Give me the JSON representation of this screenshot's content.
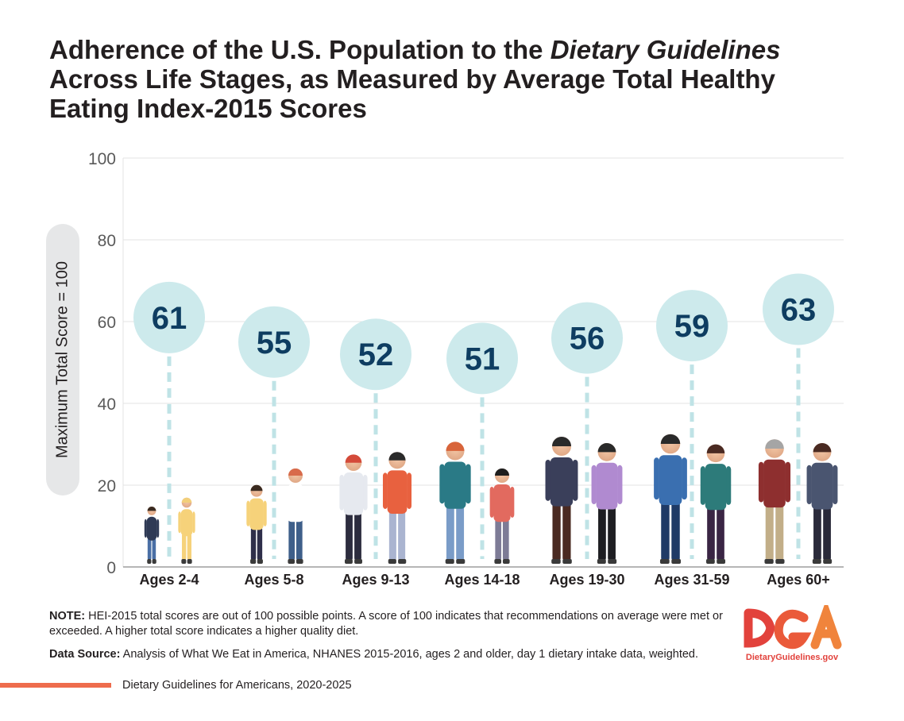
{
  "title": {
    "part1": "Adherence of the U.S. Population to the ",
    "italic": "Dietary Guidelines",
    "part2": "Across Life Stages, as Measured by Average Total Healthy Eating Index-2015 Scores"
  },
  "chart_data": {
    "type": "bar",
    "categories": [
      "Ages 2-4",
      "Ages 5-8",
      "Ages 9-13",
      "Ages 14-18",
      "Ages 19-30",
      "Ages 31-59",
      "Ages 60+"
    ],
    "values": [
      61,
      55,
      52,
      51,
      56,
      59,
      63
    ],
    "ylabel": "Maximum Total Score = 100",
    "ylim": [
      0,
      100
    ],
    "yticks": [
      0,
      20,
      40,
      60,
      80,
      100
    ],
    "grid": true,
    "colors": {
      "bubble": "#cdeaec",
      "label": "#0e3d61",
      "guide": "#bfe3e6",
      "grid": "#e3e3e3",
      "axis": "#8a8a8a"
    }
  },
  "note": {
    "label": "NOTE:",
    "text": " HEI-2015 total scores are out of 100 possible points. A score of 100 indicates that recommendations on average were met or exceeded.  A higher total score indicates a higher quality diet."
  },
  "source": {
    "label": "Data Source:",
    "text": " Analysis of What We Eat in America, NHANES 2015-2016, ages 2 and older, day 1 dietary intake data, weighted."
  },
  "logo": {
    "letters": "DGA",
    "url": "DietaryGuidelines.gov",
    "colors": [
      "#e2423c",
      "#f0843c"
    ]
  },
  "footer": {
    "text": "Dietary Guidelines for Americans, 2020-2025",
    "accent": "#ee6c4d"
  }
}
